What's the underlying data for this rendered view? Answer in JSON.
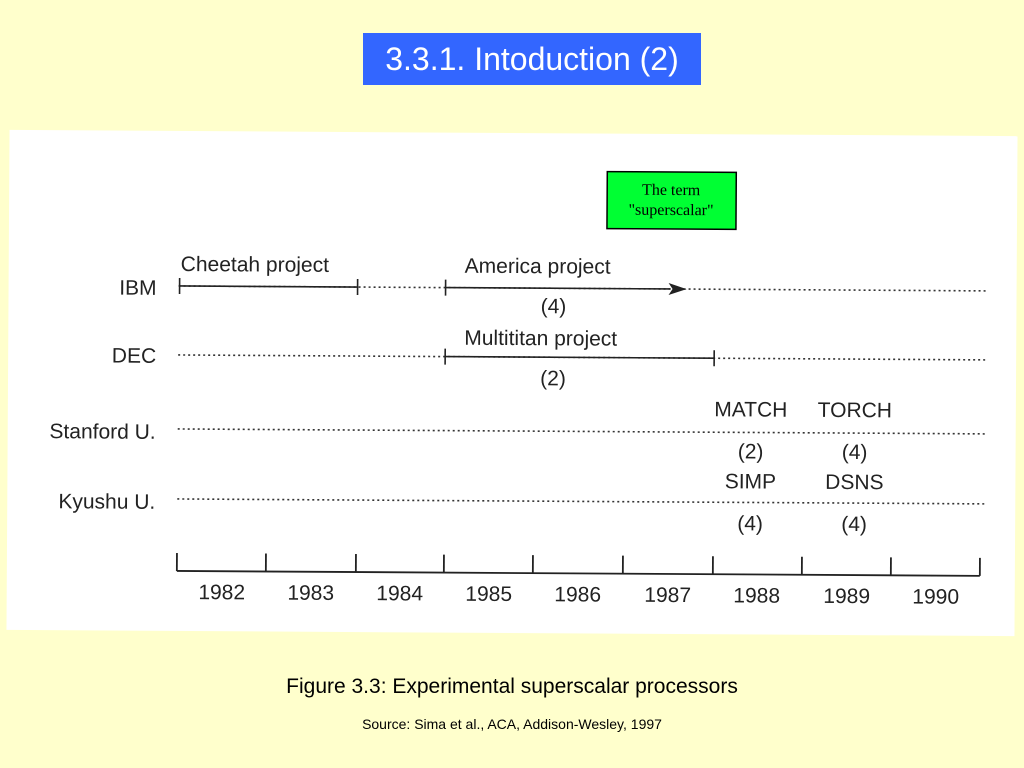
{
  "slide": {
    "title": "3.3.1. Intoduction (2)",
    "caption": "Figure 3.3: Experimental superscalar processors",
    "source": "Source: Sima et al., ACA, Addison-Wesley, 1997"
  },
  "diagram": {
    "note": {
      "line1": "The term",
      "line2": "\"superscalar\""
    },
    "rows": [
      {
        "label": "IBM"
      },
      {
        "label": "DEC"
      },
      {
        "label": "Stanford U."
      },
      {
        "label": "Kyushu U."
      }
    ],
    "projects": [
      {
        "name": "Cheetah project"
      },
      {
        "name": "America project",
        "count": "(4)"
      },
      {
        "name": "Multititan project",
        "count": "(2)"
      },
      {
        "name": "MATCH",
        "count": "(2)"
      },
      {
        "name": "TORCH",
        "count": "(4)"
      },
      {
        "name": "SIMP",
        "count": "(4)"
      },
      {
        "name": "DSNS",
        "count": "(4)"
      }
    ],
    "years": [
      "1982",
      "1983",
      "1984",
      "1985",
      "1986",
      "1987",
      "1988",
      "1989",
      "1990"
    ]
  },
  "colors": {
    "background": "#ffffcc",
    "title_box": "#3366ff",
    "note_box": "#00ff33"
  }
}
